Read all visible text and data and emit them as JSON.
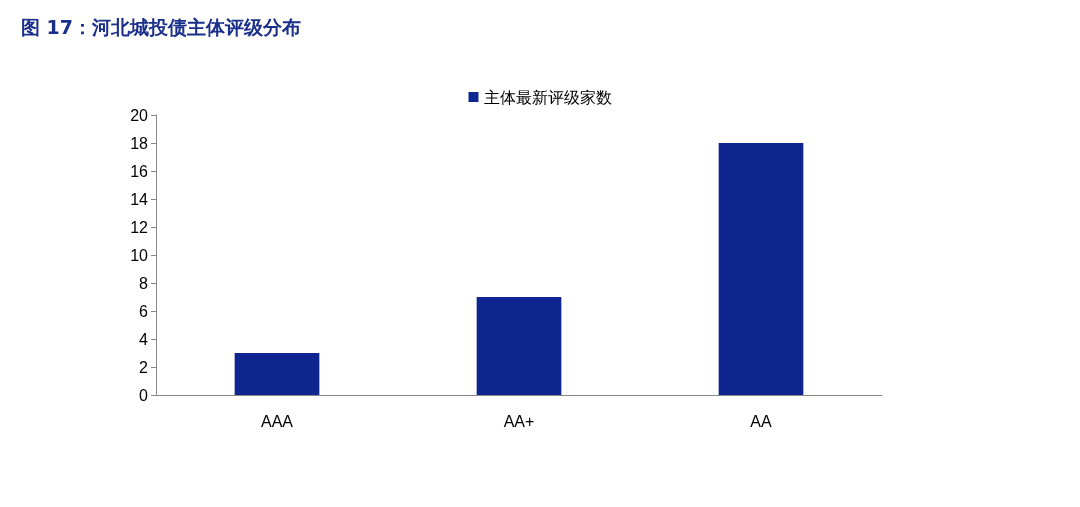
{
  "chart_data": {
    "type": "bar",
    "title": "图 17：河北城投债主体评级分布",
    "categories": [
      "AAA",
      "AA+",
      "AA"
    ],
    "series": [
      {
        "name": "主体最新评级家数",
        "color": "#0f2690",
        "values": [
          3,
          7,
          18
        ]
      }
    ],
    "ylim": [
      0,
      20
    ],
    "yticks": [
      0,
      2,
      4,
      6,
      8,
      10,
      12,
      14,
      16,
      18,
      20
    ],
    "grid": false,
    "legend": "top"
  }
}
